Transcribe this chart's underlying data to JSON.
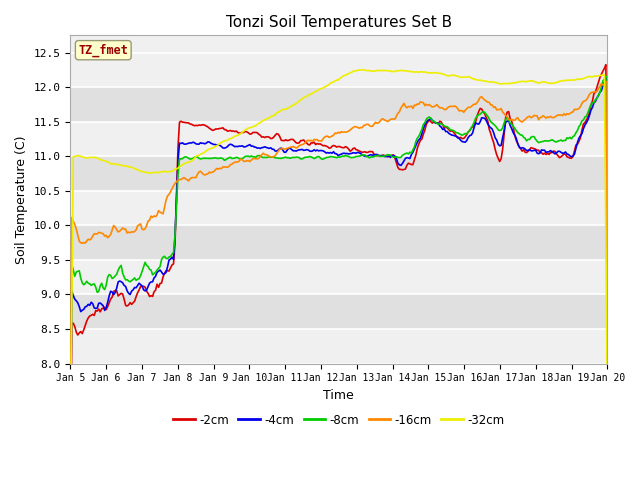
{
  "title": "Tonzi Soil Temperatures Set B",
  "xlabel": "Time",
  "ylabel": "Soil Temperature (C)",
  "ylim": [
    8.0,
    12.75
  ],
  "yticks": [
    8.0,
    8.5,
    9.0,
    9.5,
    10.0,
    10.5,
    11.0,
    11.5,
    12.0,
    12.5
  ],
  "n_points": 360,
  "series": {
    "-2cm": {
      "color": "#dd0000",
      "lw": 1.2
    },
    "-4cm": {
      "color": "#0000ee",
      "lw": 1.2
    },
    "-8cm": {
      "color": "#00cc00",
      "lw": 1.2
    },
    "-16cm": {
      "color": "#ff8800",
      "lw": 1.2
    },
    "-32cm": {
      "color": "#eeee00",
      "lw": 1.2
    }
  },
  "label_box": {
    "text": "TZ_fmet",
    "facecolor": "#ffffcc",
    "edgecolor": "#999977",
    "textcolor": "#990000"
  },
  "fig_bg": "#ffffff",
  "plot_bg_light": "#f0f0f0",
  "plot_bg_dark": "#e0e0e0",
  "xtick_labels": [
    "Jan 5",
    "Jan 6",
    "Jan 7",
    "Jan 8",
    "Jan 9",
    "Jan 10",
    "Jan 11",
    "Jan 12",
    "Jan 13",
    "Jan 14",
    "Jan 15",
    "Jan 16",
    "Jan 17",
    "Jan 18",
    "Jan 19",
    "Jan 20"
  ],
  "legend_entries": [
    "-2cm",
    "-4cm",
    "-8cm",
    "-16cm",
    "-32cm"
  ],
  "legend_colors": [
    "#dd0000",
    "#0000ee",
    "#00cc00",
    "#ff8800",
    "#eeee00"
  ]
}
